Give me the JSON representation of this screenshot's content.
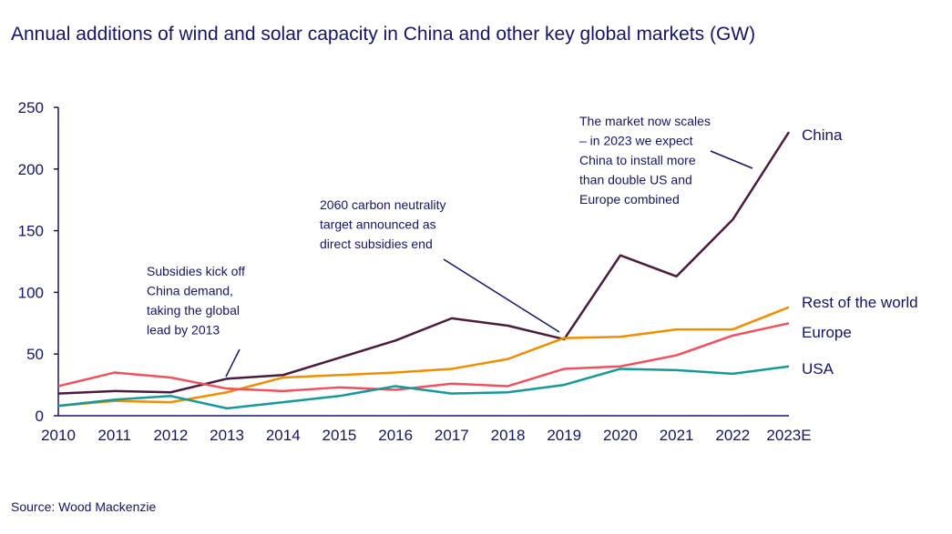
{
  "chart_data": {
    "type": "line",
    "title": "Annual additions of wind and solar capacity in China and other key global markets (GW)",
    "categories": [
      "2010",
      "2011",
      "2012",
      "2013",
      "2014",
      "2015",
      "2016",
      "2017",
      "2018",
      "2019",
      "2020",
      "2021",
      "2022",
      "2023E"
    ],
    "ylim": [
      0,
      250
    ],
    "yticks": [
      0,
      50,
      100,
      150,
      200,
      250
    ],
    "grid": false,
    "legend": "direct labels at line ends",
    "series": [
      {
        "name": "China",
        "color": "#4b1a3c",
        "values": [
          18,
          20,
          19,
          30,
          33,
          47,
          61,
          79,
          73,
          62,
          130,
          113,
          159,
          230
        ]
      },
      {
        "name": "Rest of the world",
        "color": "#f28c00",
        "values": [
          8,
          12,
          11,
          19,
          31,
          33,
          35,
          38,
          46,
          63,
          64,
          70,
          70,
          88
        ]
      },
      {
        "name": "Europe",
        "color": "#f2505f",
        "values": [
          24,
          35,
          31,
          22,
          20,
          23,
          21,
          26,
          24,
          38,
          40,
          49,
          65,
          75
        ]
      },
      {
        "name": "USA",
        "color": "#13999a",
        "values": [
          8,
          13,
          16,
          6,
          11,
          16,
          24,
          18,
          19,
          25,
          38,
          37,
          34,
          40
        ]
      }
    ],
    "annotations": [
      {
        "lines": [
          "Subsidies kick off",
          "China demand,",
          "taking the global",
          "lead by 2013"
        ],
        "points_to": "2013"
      },
      {
        "lines": [
          "2060 carbon neutrality",
          "target announced as",
          "direct subsidies end"
        ],
        "points_to": "2019"
      },
      {
        "lines": [
          "The market now scales",
          "– in 2023 we expect",
          "China to install more",
          "than double US and",
          "Europe combined"
        ],
        "points_to": "2023E"
      }
    ]
  },
  "source": "Source: Wood Mackenzie",
  "axis_color": "#14146b"
}
